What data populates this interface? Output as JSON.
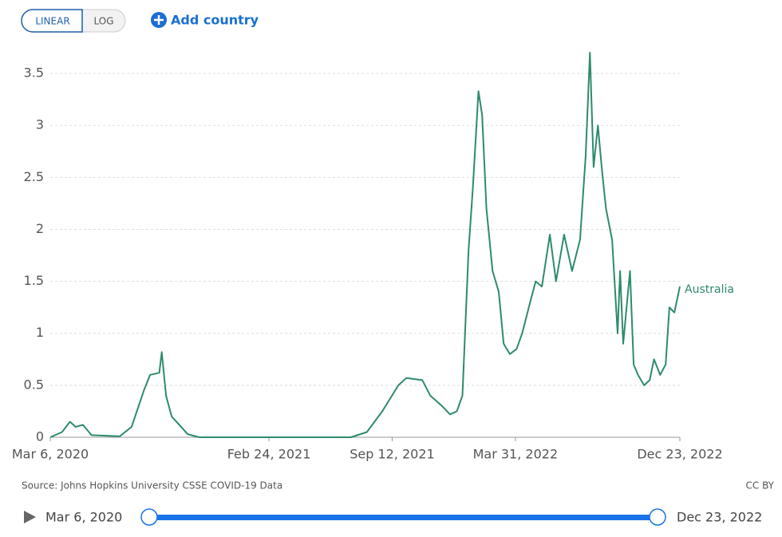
{
  "controls": {
    "linear": "LINEAR",
    "log": "LOG",
    "add": "Add country"
  },
  "chart_data": {
    "type": "line",
    "x": [
      "2020-03-06",
      "2020-03-25",
      "2020-04-07",
      "2020-04-16",
      "2020-04-28",
      "2020-05-12",
      "2020-06-27",
      "2020-07-16",
      "2020-08-05",
      "2020-08-15",
      "2020-08-30",
      "2020-09-03",
      "2020-09-10",
      "2020-09-19",
      "2020-10-15",
      "2020-11-03",
      "2021-07-07",
      "2021-08-02",
      "2021-08-27",
      "2021-09-22",
      "2021-10-05",
      "2021-10-31",
      "2021-11-13",
      "2021-12-02",
      "2021-12-15",
      "2021-12-26",
      "2022-01-04",
      "2022-01-14",
      "2022-01-21",
      "2022-01-30",
      "2022-02-05",
      "2022-02-12",
      "2022-02-22",
      "2022-03-04",
      "2022-03-12",
      "2022-03-22",
      "2022-04-02",
      "2022-04-11",
      "2022-04-24",
      "2022-05-03",
      "2022-05-13",
      "2022-05-26",
      "2022-06-05",
      "2022-06-18",
      "2022-07-01",
      "2022-07-14",
      "2022-07-23",
      "2022-07-30",
      "2022-08-05",
      "2022-08-12",
      "2022-08-18",
      "2022-08-25",
      "2022-09-04",
      "2022-09-13",
      "2022-09-17",
      "2022-09-22",
      "2022-10-03",
      "2022-10-09",
      "2022-10-16",
      "2022-10-26",
      "2022-11-04",
      "2022-11-11",
      "2022-11-21",
      "2022-11-30",
      "2022-12-06",
      "2022-12-14",
      "2022-12-23"
    ],
    "series": [
      {
        "name": "Australia",
        "color": "#2e8b6a",
        "values": [
          0,
          0.05,
          0.15,
          0.1,
          0.12,
          0.02,
          0.01,
          0.1,
          0.45,
          0.6,
          0.62,
          0.82,
          0.4,
          0.2,
          0.03,
          0,
          0,
          0.05,
          0.25,
          0.5,
          0.57,
          0.55,
          0.4,
          0.3,
          0.22,
          0.25,
          0.4,
          1.8,
          2.4,
          3.33,
          3.1,
          2.2,
          1.6,
          1.4,
          0.9,
          0.8,
          0.85,
          1.0,
          1.3,
          1.5,
          1.45,
          1.95,
          1.5,
          1.95,
          1.6,
          1.9,
          2.7,
          3.7,
          2.6,
          3.0,
          2.6,
          2.2,
          1.9,
          1.0,
          1.6,
          0.9,
          1.6,
          0.7,
          0.6,
          0.5,
          0.55,
          0.75,
          0.6,
          0.7,
          1.25,
          1.2,
          1.45
        ]
      }
    ],
    "xlim": [
      "2020-03-06",
      "2022-12-23"
    ],
    "xticks": [
      {
        "value": "2020-03-06",
        "label": "Mar 6, 2020"
      },
      {
        "value": "2021-02-24",
        "label": "Feb 24, 2021"
      },
      {
        "value": "2021-09-12",
        "label": "Sep 12, 2021"
      },
      {
        "value": "2022-03-31",
        "label": "Mar 31, 2022"
      },
      {
        "value": "2022-12-23",
        "label": "Dec 23, 2022"
      }
    ],
    "ylim": [
      0,
      3.7
    ],
    "yticks": [
      0,
      0.5,
      1,
      1.5,
      2,
      2.5,
      3,
      3.5
    ],
    "grid": true,
    "source": "Source: Johns Hopkins University CSSE COVID-19 Data",
    "license": "CC BY"
  },
  "timeline": {
    "start": "Mar 6, 2020",
    "end": "Dec 23, 2022"
  }
}
